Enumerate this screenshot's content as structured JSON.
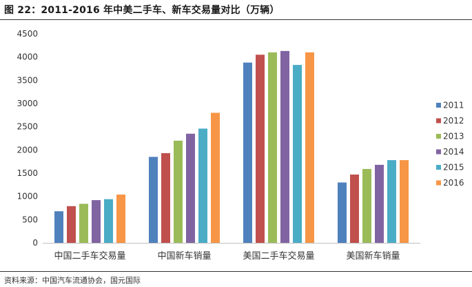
{
  "title": "图 22：2011-2016 年中美二手车、新车交易量对比（万辆）",
  "source": "资料来源：中国汽车流通协会，国元国际",
  "chart_data": {
    "type": "bar",
    "categories": [
      "中国二手车交易量",
      "中国新车销量",
      "美国二手车交易量",
      "美国新车销量"
    ],
    "series": [
      {
        "name": "2011",
        "color": "#4f81bd",
        "values": [
          680,
          1850,
          3880,
          1300
        ]
      },
      {
        "name": "2012",
        "color": "#c0504d",
        "values": [
          790,
          1930,
          4050,
          1470
        ]
      },
      {
        "name": "2013",
        "color": "#9bbb59",
        "values": [
          840,
          2200,
          4100,
          1590
        ]
      },
      {
        "name": "2014",
        "color": "#8064a2",
        "values": [
          920,
          2350,
          4130,
          1680
        ]
      },
      {
        "name": "2015",
        "color": "#4bacc6",
        "values": [
          940,
          2460,
          3830,
          1780
        ]
      },
      {
        "name": "2016",
        "color": "#f79646",
        "values": [
          1040,
          2800,
          4100,
          1780
        ]
      }
    ],
    "yticks": [
      0,
      500,
      1000,
      1500,
      2000,
      2500,
      3000,
      3500,
      4000,
      4500
    ],
    "ylim": [
      0,
      4500
    ],
    "grid": false,
    "legend": "right"
  }
}
